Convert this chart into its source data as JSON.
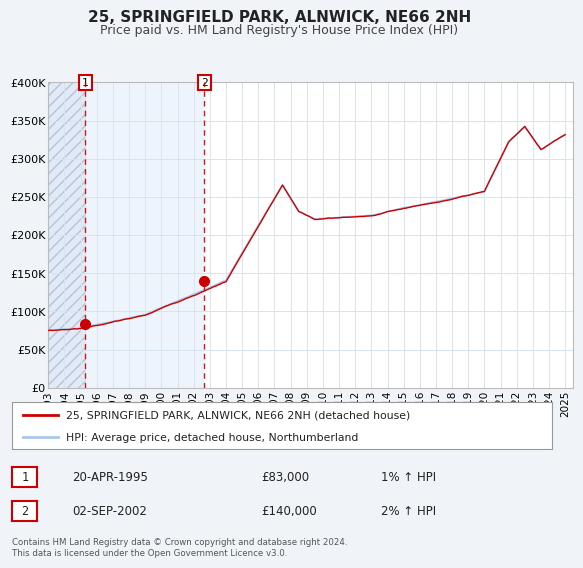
{
  "title": "25, SPRINGFIELD PARK, ALNWICK, NE66 2NH",
  "subtitle": "Price paid vs. HM Land Registry's House Price Index (HPI)",
  "ylim": [
    0,
    400000
  ],
  "xlim_start": 1993.0,
  "xlim_end": 2025.5,
  "yticks": [
    0,
    50000,
    100000,
    150000,
    200000,
    250000,
    300000,
    350000,
    400000
  ],
  "ytick_labels": [
    "£0",
    "£50K",
    "£100K",
    "£150K",
    "£200K",
    "£250K",
    "£300K",
    "£350K",
    "£400K"
  ],
  "xticks": [
    1993,
    1994,
    1995,
    1996,
    1997,
    1998,
    1999,
    2000,
    2001,
    2002,
    2003,
    2004,
    2005,
    2006,
    2007,
    2008,
    2009,
    2010,
    2011,
    2012,
    2013,
    2014,
    2015,
    2016,
    2017,
    2018,
    2019,
    2020,
    2021,
    2022,
    2023,
    2024,
    2025
  ],
  "hpi_color": "#a8c8e8",
  "price_color": "#cc0000",
  "bg_color": "#f0f4f8",
  "plot_bg_color": "#ffffff",
  "grid_color": "#d8e4f0",
  "transaction1_x": 1995.3,
  "transaction1_y": 83000,
  "transaction1_label": "1",
  "transaction1_date": "20-APR-1995",
  "transaction1_price": "£83,000",
  "transaction1_hpi": "1% ↑ HPI",
  "transaction2_x": 2002.67,
  "transaction2_y": 140000,
  "transaction2_label": "2",
  "transaction2_date": "02-SEP-2002",
  "transaction2_price": "£140,000",
  "transaction2_hpi": "2% ↑ HPI",
  "legend_line1": "25, SPRINGFIELD PARK, ALNWICK, NE66 2NH (detached house)",
  "legend_line2": "HPI: Average price, detached house, Northumberland",
  "footer": "Contains HM Land Registry data © Crown copyright and database right 2024.\nThis data is licensed under the Open Government Licence v3.0.",
  "title_fontsize": 11,
  "subtitle_fontsize": 9
}
